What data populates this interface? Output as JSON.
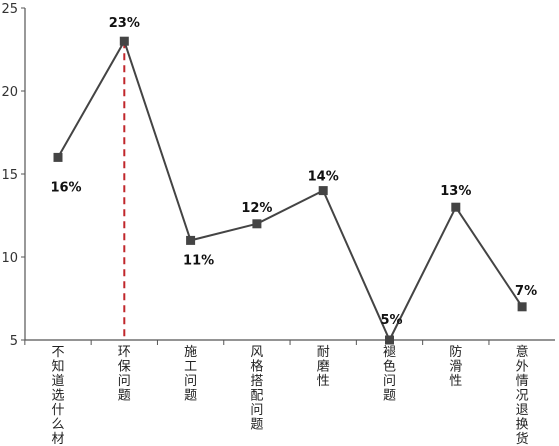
{
  "chart_data": {
    "type": "line",
    "categories": [
      "不知道选什么材质",
      "环保问题",
      "施工问题",
      "风格搭配问题",
      "耐磨性",
      "褪色问题",
      "防滑性",
      "意外情况退换货难"
    ],
    "values": [
      16,
      23,
      11,
      12,
      14,
      5,
      13,
      7
    ],
    "data_labels": [
      "16%",
      "23%",
      "11%",
      "12%",
      "14%",
      "5%",
      "13%",
      "7%"
    ],
    "ylim": [
      5,
      25
    ],
    "yticks": [
      5,
      10,
      15,
      20,
      25
    ],
    "highlight_category": "环保问题",
    "grid": false,
    "colors": {
      "line": "#444444",
      "marker": "#444444",
      "axis": "#555555",
      "highlight": "#c0262b"
    }
  }
}
